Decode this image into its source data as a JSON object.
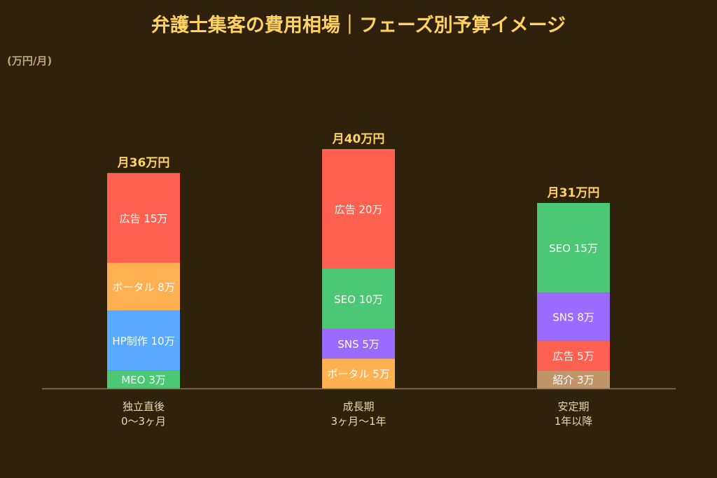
{
  "chart_data": {
    "type": "bar",
    "stacked": true,
    "title": "弁護士集客の費用相場｜フェーズ別予算イメージ",
    "ylabel": "(万円/月)",
    "ylim": [
      0,
      40
    ],
    "grid": false,
    "categories": [
      {
        "line1": "独立直後",
        "line2": "0〜3ヶ月",
        "total_label": "月36万円",
        "total": 36,
        "segments": [
          {
            "label": "MEO 3万",
            "value": 3,
            "color": "#4cc774"
          },
          {
            "label": "HP制作 10万",
            "value": 10,
            "color": "#5aabff"
          },
          {
            "label": "ポータル 8万",
            "value": 8,
            "color": "#ffb050"
          },
          {
            "label": "広告 15万",
            "value": 15,
            "color": "#ff6150"
          }
        ]
      },
      {
        "line1": "成長期",
        "line2": "3ヶ月〜1年",
        "total_label": "月40万円",
        "total": 40,
        "segments": [
          {
            "label": "ポータル 5万",
            "value": 5,
            "color": "#ffb050"
          },
          {
            "label": "SNS 5万",
            "value": 5,
            "color": "#9b6bff"
          },
          {
            "label": "SEO 10万",
            "value": 10,
            "color": "#4cc774"
          },
          {
            "label": "広告 20万",
            "value": 20,
            "color": "#ff6150"
          }
        ]
      },
      {
        "line1": "安定期",
        "line2": "1年以降",
        "total_label": "月31万円",
        "total": 31,
        "segments": [
          {
            "label": "紹介 3万",
            "value": 3,
            "color": "#c0956a"
          },
          {
            "label": "広告 5万",
            "value": 5,
            "color": "#ff6150"
          },
          {
            "label": "SNS 8万",
            "value": 8,
            "color": "#9b6bff"
          },
          {
            "label": "SEO 15万",
            "value": 15,
            "color": "#4cc774"
          }
        ]
      }
    ],
    "colors": {
      "background": "#30210c",
      "title": "#ffd262",
      "axis": "#8a7a55",
      "category_text": "#e8d9b0"
    }
  }
}
